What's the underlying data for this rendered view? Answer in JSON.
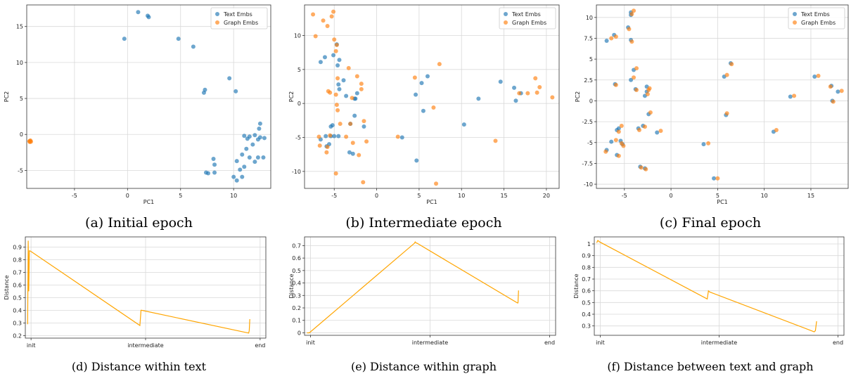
{
  "series_colors": {
    "text": "#1f77b4",
    "graph": "#ff7f0e",
    "line": "#ffa500"
  },
  "captions": [
    "(a) Initial epoch",
    "(b) Intermediate epoch",
    "(c) Final epoch",
    "(d) Distance within text",
    "(e) Distance within graph",
    "(f) Distance between text and graph"
  ],
  "chart_data": [
    {
      "type": "scatter",
      "id": "a",
      "title": "",
      "xlabel": "PC1",
      "ylabel": "PC2",
      "xlim": [
        -9.5,
        13.5
      ],
      "ylim": [
        -7.5,
        18
      ],
      "xticks": [
        -5,
        0,
        5,
        10
      ],
      "yticks": [
        -5,
        0,
        5,
        10,
        15
      ],
      "grid": true,
      "legend": "top-right",
      "series": [
        {
          "name": "Text Embs",
          "color": "#1f77b4",
          "points": [
            [
              1,
              17
            ],
            [
              1.9,
              16.5
            ],
            [
              2,
              16.3
            ],
            [
              -0.3,
              13.3
            ],
            [
              4.8,
              13.3
            ],
            [
              6.2,
              12.2
            ],
            [
              9.6,
              7.8
            ],
            [
              10.2,
              6
            ],
            [
              7.3,
              6.2
            ],
            [
              7.2,
              5.8
            ],
            [
              12.5,
              1.5
            ],
            [
              12.4,
              0.8
            ],
            [
              11,
              -0.2
            ],
            [
              11.5,
              -0.3
            ],
            [
              12,
              -0.1
            ],
            [
              12.5,
              -0.4
            ],
            [
              11.3,
              -0.6
            ],
            [
              12.9,
              -0.5
            ],
            [
              12.3,
              -0.7
            ],
            [
              11.8,
              -1.4
            ],
            [
              11.2,
              -2
            ],
            [
              10.8,
              -2.8
            ],
            [
              11.5,
              -3.2
            ],
            [
              12.3,
              -3.2
            ],
            [
              12.8,
              -3.2
            ],
            [
              12,
              -3.8
            ],
            [
              10.3,
              -3.7
            ],
            [
              8.1,
              -3.4
            ],
            [
              8.2,
              -4.2
            ],
            [
              11,
              -4.5
            ],
            [
              10.6,
              -4.9
            ],
            [
              7.4,
              -5.3
            ],
            [
              7.6,
              -5.4
            ],
            [
              8.2,
              -5.3
            ],
            [
              10,
              -5.9
            ],
            [
              10.8,
              -5.9
            ],
            [
              10.3,
              -6.4
            ]
          ]
        },
        {
          "name": "Graph Embs",
          "color": "#ff7f0e",
          "points": [
            [
              -9.2,
              -0.9
            ],
            [
              -9.1,
              -1
            ],
            [
              -9.25,
              -0.95
            ],
            [
              -9.15,
              -0.85
            ],
            [
              -9.2,
              -1.05
            ]
          ]
        }
      ]
    },
    {
      "type": "scatter",
      "id": "b",
      "title": "",
      "xlabel": "PC1",
      "ylabel": "PC2",
      "xlim": [
        -8.5,
        21.5
      ],
      "ylim": [
        -12.5,
        14.5
      ],
      "xticks": [
        -5,
        0,
        5,
        10,
        15,
        20
      ],
      "yticks": [
        -10,
        -5,
        0,
        5,
        10
      ],
      "grid": true,
      "legend": "top-right",
      "series": [
        {
          "name": "Text Embs",
          "color": "#1f77b4",
          "points": [
            [
              -4.7,
              8.7
            ],
            [
              -6.6,
              6.1
            ],
            [
              -6.1,
              6.8
            ],
            [
              -5.1,
              7.1
            ],
            [
              -4.4,
              6.4
            ],
            [
              -4.6,
              5.6
            ],
            [
              -3.9,
              3.4
            ],
            [
              -4.5,
              2.8
            ],
            [
              -4.4,
              2.1
            ],
            [
              -3.6,
              1.1
            ],
            [
              -2.3,
              1.5
            ],
            [
              -2.5,
              0.7
            ],
            [
              -2.6,
              0.7
            ],
            [
              -3.1,
              -3
            ],
            [
              -2.6,
              -1.8
            ],
            [
              -1.5,
              -3.4
            ],
            [
              -5.2,
              -3.2
            ],
            [
              -5.4,
              -3.4
            ],
            [
              -5.4,
              -4.8
            ],
            [
              -5.6,
              -6
            ],
            [
              -6,
              -4.8
            ],
            [
              -6.6,
              -5.3
            ],
            [
              -5.9,
              -6.3
            ],
            [
              -3.2,
              -7.2
            ],
            [
              -2.8,
              -7.4
            ],
            [
              -4.5,
              -4.8
            ],
            [
              -5,
              -4.8
            ],
            [
              3,
              -5
            ],
            [
              4.7,
              -8.4
            ],
            [
              4.6,
              1.3
            ],
            [
              5.3,
              3
            ],
            [
              6,
              4
            ],
            [
              5.5,
              -1.1
            ],
            [
              10.3,
              -3.1
            ],
            [
              12,
              0.7
            ],
            [
              14.6,
              3.2
            ],
            [
              16.2,
              2.3
            ],
            [
              16.4,
              0.4
            ],
            [
              17,
              1.5
            ]
          ]
        },
        {
          "name": "Graph Embs",
          "color": "#ff7f0e",
          "points": [
            [
              -7.5,
              13.1
            ],
            [
              -7.2,
              9.9
            ],
            [
              -6.3,
              12.2
            ],
            [
              -5.8,
              11.4
            ],
            [
              -5.3,
              12.8
            ],
            [
              -5.1,
              13.5
            ],
            [
              -5,
              9.4
            ],
            [
              -4.7,
              8.6
            ],
            [
              -4.8,
              7.7
            ],
            [
              -3.3,
              5.2
            ],
            [
              -2.3,
              4
            ],
            [
              -4.6,
              3.7
            ],
            [
              -1.8,
              2.9
            ],
            [
              -5.7,
              1.8
            ],
            [
              -5.5,
              1.6
            ],
            [
              -1.8,
              2.1
            ],
            [
              -4.8,
              1.3
            ],
            [
              -2.9,
              0.8
            ],
            [
              -4.7,
              -0.2
            ],
            [
              -4.6,
              -1
            ],
            [
              -3.1,
              -3
            ],
            [
              -4.3,
              -3
            ],
            [
              -1.5,
              -2.6
            ],
            [
              -6.8,
              -4.9
            ],
            [
              -5.5,
              -4.7
            ],
            [
              -3.6,
              -4.9
            ],
            [
              -6.7,
              -6.2
            ],
            [
              -5.8,
              -6.4
            ],
            [
              -2.8,
              -5.8
            ],
            [
              -5.9,
              -7.2
            ],
            [
              -4.8,
              -10.3
            ],
            [
              -1.2,
              -5.6
            ],
            [
              2.5,
              -4.9
            ],
            [
              -2.1,
              -7.6
            ],
            [
              -1.6,
              -11.6
            ],
            [
              4.5,
              3.8
            ],
            [
              6.7,
              -0.6
            ],
            [
              7.4,
              5.8
            ],
            [
              7,
              -11.8
            ],
            [
              14,
              -5.5
            ],
            [
              16.8,
              1.5
            ],
            [
              17.8,
              1.5
            ],
            [
              18.7,
              3.7
            ],
            [
              19.2,
              2.4
            ],
            [
              18.9,
              1.6
            ],
            [
              20.7,
              0.9
            ]
          ]
        }
      ]
    },
    {
      "type": "scatter",
      "id": "c",
      "title": "",
      "xlabel": "PC1",
      "ylabel": "PC2",
      "xlim": [
        -8,
        19
      ],
      "ylim": [
        -10.5,
        11.5
      ],
      "xticks": [
        -5,
        0,
        5,
        10,
        15
      ],
      "yticks": [
        -10,
        -7.5,
        -5,
        -2.5,
        0,
        2.5,
        5,
        7.5,
        10
      ],
      "grid": true,
      "legend": "top-right",
      "series": [
        {
          "name": "Text Embs",
          "color": "#1f77b4",
          "points": [
            [
              -4.3,
              10.6
            ],
            [
              -4.3,
              10.3
            ],
            [
              -6.1,
              7.9
            ],
            [
              -6.9,
              7.2
            ],
            [
              -4.6,
              8.8
            ],
            [
              -4.3,
              7.3
            ],
            [
              -6,
              2
            ],
            [
              -4,
              3.7
            ],
            [
              -4.3,
              2.5
            ],
            [
              -3.8,
              1.4
            ],
            [
              -2.6,
              1.7
            ],
            [
              -2.6,
              1.1
            ],
            [
              -2.8,
              0.6
            ],
            [
              -2.4,
              -1.6
            ],
            [
              -1.5,
              -3.8
            ],
            [
              -3.5,
              -3.3
            ],
            [
              -5.6,
              -3.3
            ],
            [
              -5.8,
              -3.5
            ],
            [
              -3,
              -3
            ],
            [
              -6.9,
              -5.9
            ],
            [
              -6.4,
              -4.9
            ],
            [
              -5.4,
              -4.8
            ],
            [
              -5.2,
              -5.2
            ],
            [
              -5.8,
              -6.5
            ],
            [
              -3.3,
              -7.9
            ],
            [
              -2.8,
              -8.1
            ],
            [
              3.5,
              -5.2
            ],
            [
              4.6,
              -9.3
            ],
            [
              5.7,
              2.9
            ],
            [
              5.9,
              -1.7
            ],
            [
              6.4,
              4.5
            ],
            [
              11,
              -3.7
            ],
            [
              12.8,
              0.5
            ],
            [
              15.4,
              2.9
            ],
            [
              17.2,
              1.8
            ],
            [
              17.3,
              0
            ],
            [
              17.9,
              1.1
            ]
          ]
        },
        {
          "name": "Graph Embs",
          "color": "#ff7f0e",
          "points": [
            [
              -4,
              10.8
            ],
            [
              -4.2,
              10.4
            ],
            [
              -5.9,
              7.7
            ],
            [
              -6.4,
              7.5
            ],
            [
              -4.5,
              8.6
            ],
            [
              -4.2,
              7.1
            ],
            [
              -5.9,
              1.9
            ],
            [
              -3.7,
              3.9
            ],
            [
              -4,
              2.8
            ],
            [
              -3.7,
              1.3
            ],
            [
              -2.3,
              1.5
            ],
            [
              -2.4,
              1.3
            ],
            [
              -2.5,
              0.8
            ],
            [
              -2.2,
              -1.4
            ],
            [
              -1.1,
              -3.6
            ],
            [
              -3.4,
              -3.5
            ],
            [
              -5.3,
              -3
            ],
            [
              -5.6,
              -3.7
            ],
            [
              -2.8,
              -3.1
            ],
            [
              -7,
              -6.1
            ],
            [
              -5.9,
              -4.7
            ],
            [
              -5.3,
              -5.1
            ],
            [
              -5.1,
              -5.4
            ],
            [
              -5.6,
              -6.6
            ],
            [
              -3.2,
              -8
            ],
            [
              -2.7,
              -8.2
            ],
            [
              4,
              -5.1
            ],
            [
              5,
              -9.3
            ],
            [
              6,
              3.1
            ],
            [
              6,
              -1.5
            ],
            [
              6.5,
              4.4
            ],
            [
              11.3,
              -3.5
            ],
            [
              13.2,
              0.6
            ],
            [
              15.8,
              3
            ],
            [
              17.1,
              1.7
            ],
            [
              17.4,
              -0.1
            ],
            [
              18.3,
              1.2
            ]
          ]
        }
      ]
    },
    {
      "type": "line",
      "id": "d",
      "title": "",
      "xlabel": "",
      "ylabel": "Distance",
      "xlim": [
        -0.05,
        2.05
      ],
      "ylim": [
        0.18,
        0.98
      ],
      "xticks": [
        {
          "value": 0,
          "label": "init"
        },
        {
          "value": 1,
          "label": "intermediate"
        },
        {
          "value": 2,
          "label": "end"
        }
      ],
      "yticks": [
        0.2,
        0.3,
        0.4,
        0.5,
        0.6,
        0.7,
        0.8,
        0.9
      ],
      "grid": true,
      "x": [
        -0.03,
        -0.025,
        -0.02,
        -0.015,
        -0.01,
        0,
        0.95,
        0.96,
        0.965,
        1.9,
        1.905,
        1.91
      ],
      "values": [
        0.29,
        0.95,
        0.55,
        0.87,
        0.87,
        0.865,
        0.28,
        0.4,
        0.4,
        0.22,
        0.24,
        0.33
      ]
    },
    {
      "type": "line",
      "id": "e",
      "title": "",
      "xlabel": "",
      "ylabel": "Distance",
      "xlim": [
        -0.05,
        2.05
      ],
      "ylim": [
        -0.02,
        0.77
      ],
      "xticks": [
        {
          "value": 0,
          "label": "init"
        },
        {
          "value": 1,
          "label": "intermediate"
        },
        {
          "value": 2,
          "label": "end"
        }
      ],
      "yticks": [
        0.0,
        0.1,
        0.2,
        0.3,
        0.4,
        0.5,
        0.6,
        0.7
      ],
      "grid": true,
      "x": [
        -0.03,
        -0.01,
        0.87,
        0.875,
        0.885,
        0.89,
        1.73,
        1.735,
        1.74
      ],
      "values": [
        0.0,
        0.0,
        0.72,
        0.73,
        0.72,
        0.72,
        0.24,
        0.24,
        0.34
      ]
    },
    {
      "type": "line",
      "id": "f",
      "title": "",
      "xlabel": "",
      "ylabel": "Distance",
      "xlim": [
        -0.05,
        2.05
      ],
      "ylim": [
        0.22,
        1.06
      ],
      "xticks": [
        {
          "value": 0,
          "label": "init"
        },
        {
          "value": 1,
          "label": "intermediate"
        },
        {
          "value": 2,
          "label": "end"
        }
      ],
      "yticks": [
        0.3,
        0.4,
        0.5,
        0.6,
        0.7,
        0.8,
        0.9,
        1.0
      ],
      "grid": true,
      "x": [
        -0.03,
        -0.02,
        -0.01,
        0.9,
        0.91,
        0.92,
        1.8,
        1.81,
        1.82
      ],
      "values": [
        1.01,
        1.03,
        1.02,
        0.53,
        0.6,
        0.59,
        0.25,
        0.26,
        0.34
      ]
    }
  ]
}
